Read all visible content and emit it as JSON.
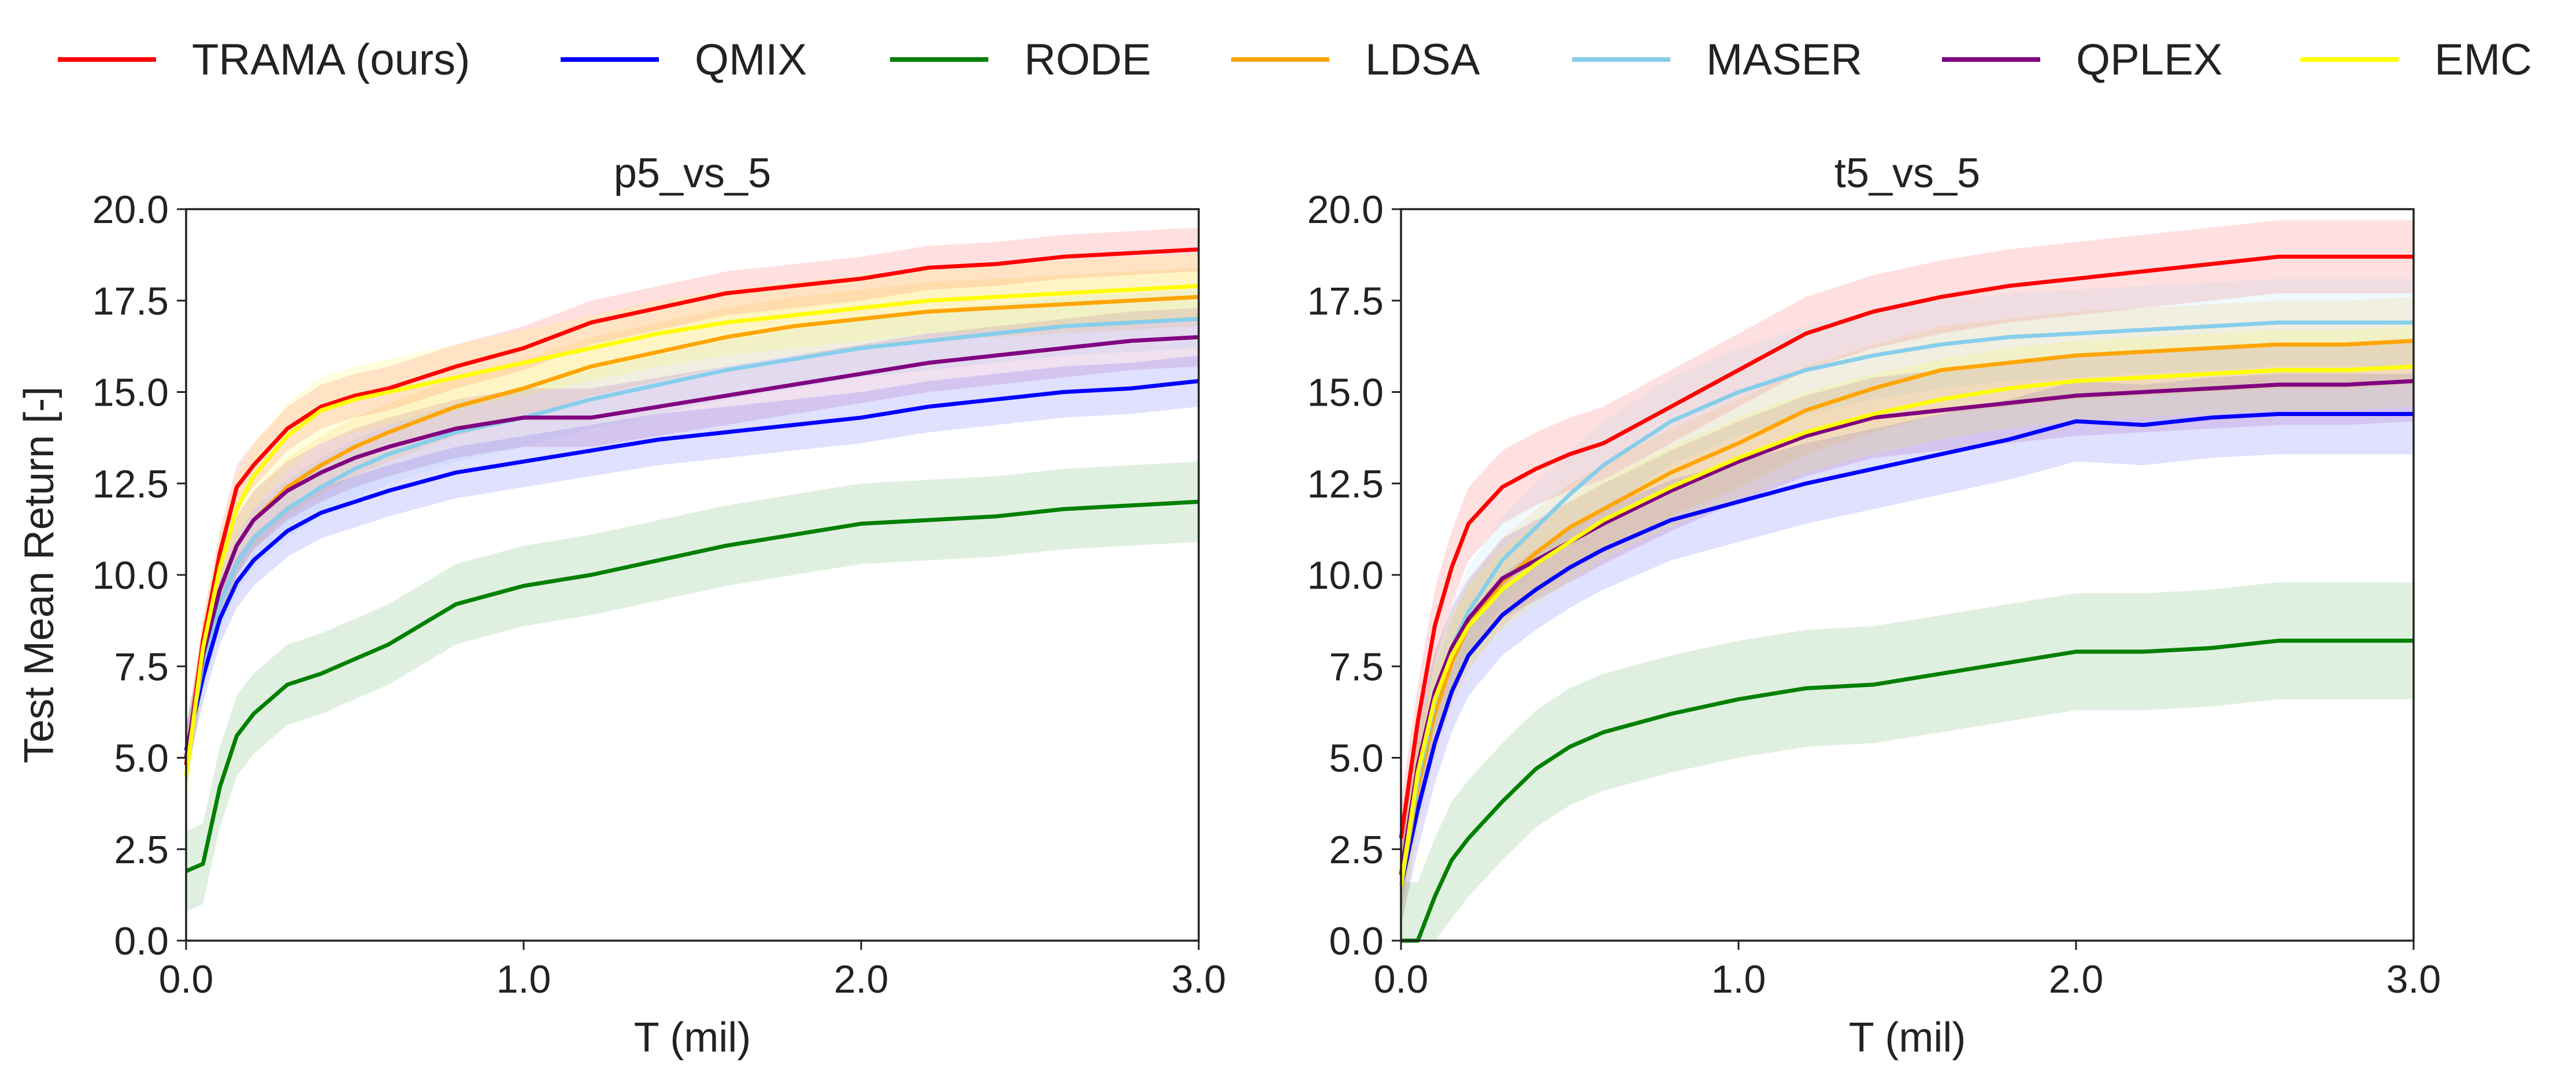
{
  "legend": {
    "items": [
      {
        "label": "TRAMA (ours)",
        "color": "#ff0000"
      },
      {
        "label": "QMIX",
        "color": "#0000ff"
      },
      {
        "label": "RODE",
        "color": "#008000"
      },
      {
        "label": "LDSA",
        "color": "#ffa500"
      },
      {
        "label": "MASER",
        "color": "#87ceeb"
      },
      {
        "label": "QPLEX",
        "color": "#800080"
      },
      {
        "label": "EMC",
        "color": "#ffff00"
      }
    ]
  },
  "chart_data": [
    {
      "type": "line",
      "title": "p5_vs_5",
      "xlabel": "T (mil)",
      "ylabel": "Test Mean Return [-]",
      "xlim": [
        0,
        3.0
      ],
      "ylim": [
        0,
        20.0
      ],
      "xticks": [
        0.0,
        1.0,
        2.0,
        3.0
      ],
      "xtick_labels": [
        "0.0",
        "1.0",
        "2.0",
        "3.0"
      ],
      "yticks": [
        0,
        2.5,
        5,
        7.5,
        10,
        12.5,
        15,
        17.5,
        20
      ],
      "ytick_labels": [
        "0.0",
        "2.5",
        "5.0",
        "7.5",
        "10.0",
        "12.5",
        "15.0",
        "17.5",
        "20.0"
      ],
      "x": [
        0,
        0.05,
        0.1,
        0.15,
        0.2,
        0.3,
        0.4,
        0.5,
        0.6,
        0.8,
        1.0,
        1.2,
        1.4,
        1.6,
        1.8,
        2.0,
        2.2,
        2.4,
        2.6,
        2.8,
        3.0
      ],
      "series": [
        {
          "name": "TRAMA (ours)",
          "color": "#ff0000",
          "band": 0.6,
          "values": [
            4.8,
            8.2,
            10.6,
            12.4,
            13.0,
            14.0,
            14.6,
            14.9,
            15.1,
            15.7,
            16.2,
            16.9,
            17.3,
            17.7,
            17.9,
            18.1,
            18.4,
            18.5,
            18.7,
            18.8,
            18.9
          ]
        },
        {
          "name": "QMIX",
          "color": "#0000ff",
          "band": 0.7,
          "values": [
            5.2,
            7.2,
            8.8,
            9.8,
            10.4,
            11.2,
            11.7,
            12.0,
            12.3,
            12.8,
            13.1,
            13.4,
            13.7,
            13.9,
            14.1,
            14.3,
            14.6,
            14.8,
            15.0,
            15.1,
            15.3
          ]
        },
        {
          "name": "RODE",
          "color": "#008000",
          "band": 1.1,
          "values": [
            1.9,
            2.1,
            4.2,
            5.6,
            6.2,
            7.0,
            7.3,
            7.7,
            8.1,
            9.2,
            9.7,
            10.0,
            10.4,
            10.8,
            11.1,
            11.4,
            11.5,
            11.6,
            11.8,
            11.9,
            12.0
          ]
        },
        {
          "name": "LDSA",
          "color": "#ffa500",
          "band": 0.8,
          "values": [
            5.0,
            7.8,
            9.6,
            10.8,
            11.5,
            12.4,
            13.0,
            13.5,
            13.9,
            14.6,
            15.1,
            15.7,
            16.1,
            16.5,
            16.8,
            17.0,
            17.2,
            17.3,
            17.4,
            17.5,
            17.6
          ]
        },
        {
          "name": "MASER",
          "color": "#87ceeb",
          "band": 0.8,
          "values": [
            5.0,
            7.6,
            9.2,
            10.3,
            11.0,
            11.8,
            12.4,
            12.9,
            13.3,
            13.9,
            14.3,
            14.8,
            15.2,
            15.6,
            15.9,
            16.2,
            16.4,
            16.6,
            16.8,
            16.9,
            17.0
          ]
        },
        {
          "name": "QPLEX",
          "color": "#800080",
          "band": 0.8,
          "values": [
            5.0,
            7.8,
            9.6,
            10.8,
            11.5,
            12.3,
            12.8,
            13.2,
            13.5,
            14.0,
            14.3,
            14.3,
            14.6,
            14.9,
            15.2,
            15.5,
            15.8,
            16.0,
            16.2,
            16.4,
            16.5
          ]
        },
        {
          "name": "EMC",
          "color": "#ffff00",
          "band": 0.9,
          "values": [
            4.5,
            8.0,
            10.2,
            11.8,
            12.7,
            13.8,
            14.5,
            14.8,
            15.0,
            15.4,
            15.8,
            16.2,
            16.6,
            16.9,
            17.1,
            17.3,
            17.5,
            17.6,
            17.7,
            17.8,
            17.9
          ]
        }
      ]
    },
    {
      "type": "line",
      "title": "t5_vs_5",
      "xlabel": "T (mil)",
      "ylabel": "",
      "xlim": [
        0,
        3.0
      ],
      "ylim": [
        0,
        20.0
      ],
      "xticks": [
        0.0,
        1.0,
        2.0,
        3.0
      ],
      "xtick_labels": [
        "0.0",
        "1.0",
        "2.0",
        "3.0"
      ],
      "yticks": [
        0,
        2.5,
        5,
        7.5,
        10,
        12.5,
        15,
        17.5,
        20
      ],
      "ytick_labels": [
        "0.0",
        "2.5",
        "5.0",
        "7.5",
        "10.0",
        "12.5",
        "15.0",
        "17.5",
        "20.0"
      ],
      "x": [
        0,
        0.05,
        0.1,
        0.15,
        0.2,
        0.3,
        0.4,
        0.5,
        0.6,
        0.8,
        1.0,
        1.2,
        1.4,
        1.6,
        1.8,
        2.0,
        2.2,
        2.4,
        2.6,
        2.8,
        3.0
      ],
      "series": [
        {
          "name": "TRAMA (ours)",
          "color": "#ff0000",
          "band": 1.0,
          "values": [
            2.8,
            6.0,
            8.6,
            10.2,
            11.4,
            12.4,
            12.9,
            13.3,
            13.6,
            14.6,
            15.6,
            16.6,
            17.2,
            17.6,
            17.9,
            18.1,
            18.3,
            18.5,
            18.7,
            18.7,
            18.7
          ]
        },
        {
          "name": "QMIX",
          "color": "#0000ff",
          "band": 1.1,
          "values": [
            1.5,
            3.6,
            5.4,
            6.8,
            7.8,
            8.9,
            9.6,
            10.2,
            10.7,
            11.5,
            12.0,
            12.5,
            12.9,
            13.3,
            13.7,
            14.2,
            14.1,
            14.3,
            14.4,
            14.4,
            14.4
          ]
        },
        {
          "name": "RODE",
          "color": "#008000",
          "band": 1.6,
          "values": [
            0.0,
            0.0,
            1.2,
            2.2,
            2.8,
            3.8,
            4.7,
            5.3,
            5.7,
            6.2,
            6.6,
            6.9,
            7.0,
            7.3,
            7.6,
            7.9,
            7.9,
            8.0,
            8.2,
            8.2,
            8.2
          ]
        },
        {
          "name": "LDSA",
          "color": "#ffa500",
          "band": 1.2,
          "values": [
            1.5,
            4.2,
            6.2,
            7.6,
            8.6,
            9.8,
            10.6,
            11.3,
            11.8,
            12.8,
            13.6,
            14.5,
            15.1,
            15.6,
            15.8,
            16.0,
            16.1,
            16.2,
            16.3,
            16.3,
            16.4
          ]
        },
        {
          "name": "MASER",
          "color": "#87ceeb",
          "band": 1.2,
          "values": [
            1.5,
            4.4,
            6.5,
            8.0,
            9.0,
            10.4,
            11.3,
            12.2,
            13.0,
            14.2,
            15.0,
            15.6,
            16.0,
            16.3,
            16.5,
            16.6,
            16.7,
            16.8,
            16.9,
            16.9,
            16.9
          ]
        },
        {
          "name": "QPLEX",
          "color": "#800080",
          "band": 1.1,
          "values": [
            1.8,
            4.8,
            6.8,
            8.0,
            8.8,
            9.9,
            10.4,
            10.9,
            11.4,
            12.3,
            13.1,
            13.8,
            14.3,
            14.5,
            14.7,
            14.9,
            15.0,
            15.1,
            15.2,
            15.2,
            15.3
          ]
        },
        {
          "name": "EMC",
          "color": "#ffff00",
          "band": 1.1,
          "values": [
            1.5,
            4.6,
            6.6,
            7.8,
            8.6,
            9.6,
            10.3,
            10.9,
            11.5,
            12.4,
            13.2,
            13.9,
            14.4,
            14.8,
            15.1,
            15.3,
            15.4,
            15.5,
            15.6,
            15.6,
            15.7
          ]
        }
      ]
    }
  ]
}
